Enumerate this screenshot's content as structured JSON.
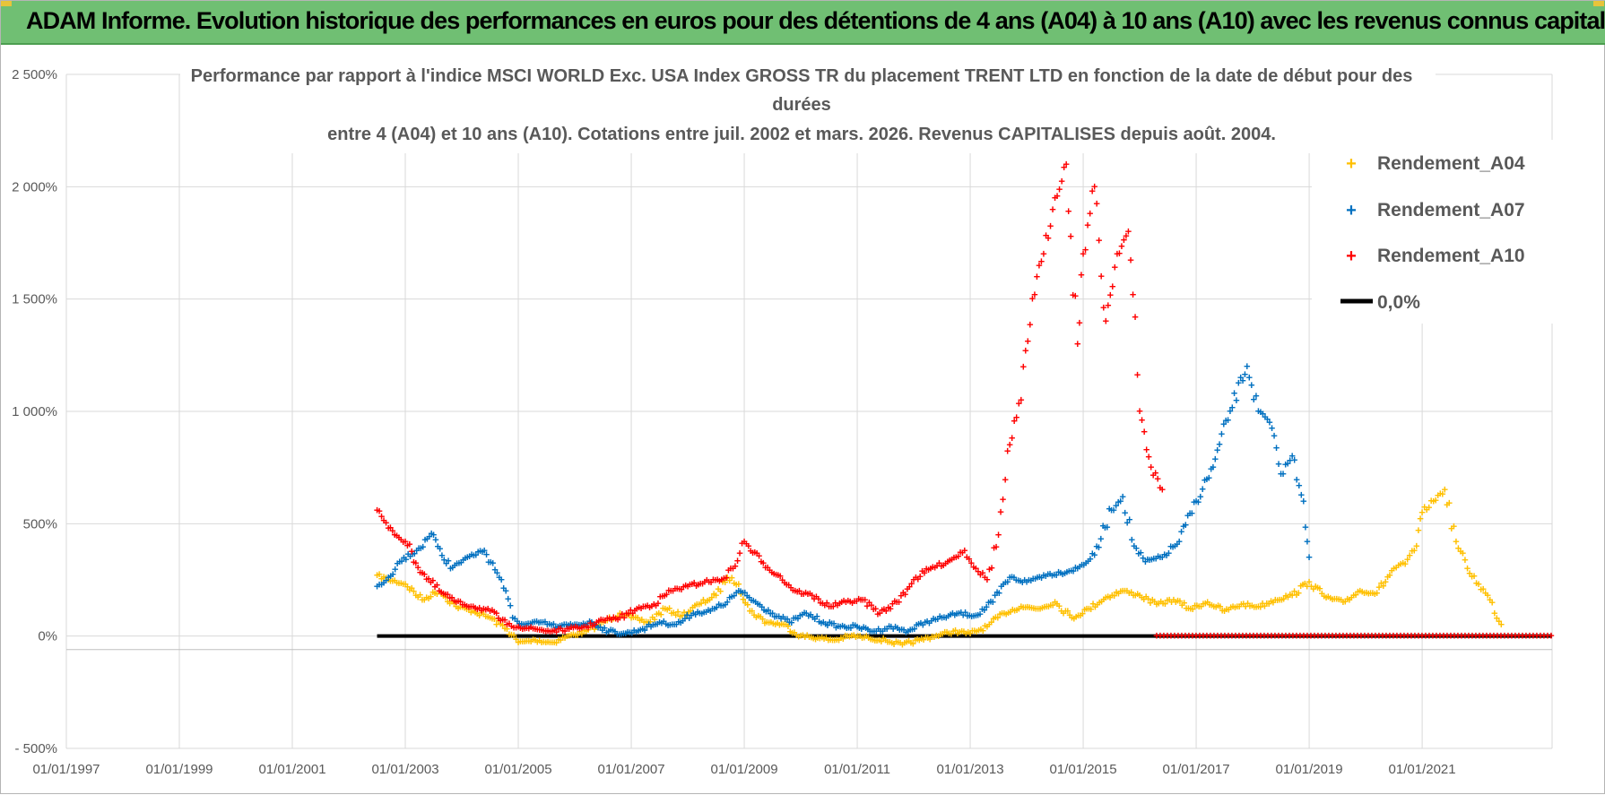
{
  "banner": {
    "title": "ADAM Informe. Evolution historique des performances en euros pour des détentions de 4 ans (A04) à 10 ans (A10) avec les revenus connus capitalisés"
  },
  "colors": {
    "banner_bg": "#70bf73",
    "A04": "#ffc000",
    "A07": "#0070c0",
    "A10": "#ff0000",
    "zero": "#000000",
    "grid": "#d9d9d9",
    "text": "#595959"
  },
  "chart_data": {
    "type": "scatter",
    "title_lines": [
      "Performance par rapport à l'indice MSCI WORLD Exc. USA Index GROSS TR  du placement TRENT LTD en fonction de la date de début pour des",
      "durées",
      "entre 4 (A04) et 10 ans (A10).  Cotations entre juil. 2002 et mars. 2026.  Revenus CAPITALISES  depuis août. 2004."
    ],
    "y_ticks": [
      "- 500%",
      "0%",
      "500%",
      "1 000%",
      "1 500%",
      "2 000%",
      "2 500%"
    ],
    "y_tick_values": [
      -500,
      0,
      500,
      1000,
      1500,
      2000,
      2500
    ],
    "x_ticks": [
      "01/01/1997",
      "01/01/1999",
      "01/01/2001",
      "01/01/2003",
      "01/01/2005",
      "01/01/2007",
      "01/01/2009",
      "01/01/2011",
      "01/01/2013",
      "01/01/2015",
      "01/01/2017",
      "01/01/2019",
      "01/01/2021"
    ],
    "x_tick_values": [
      1997,
      1999,
      2001,
      2003,
      2005,
      2007,
      2009,
      2011,
      2013,
      2015,
      2017,
      2019,
      2021
    ],
    "xlim": [
      1997,
      2023.3
    ],
    "ylim": [
      -500,
      2500
    ],
    "ylabel_unit": "%",
    "legend": [
      {
        "name": "Rendement_A04",
        "key": "A04",
        "marker": "+"
      },
      {
        "name": "Rendement_A07",
        "key": "A07",
        "marker": "+"
      },
      {
        "name": "Rendement_A10",
        "key": "A10",
        "marker": "+"
      },
      {
        "name": "0,0%",
        "key": "zero",
        "marker": "line"
      }
    ],
    "series": [
      {
        "name": "Rendement_A04",
        "key": "A04",
        "x": [
          2002.5,
          2002.7,
          2003.0,
          2003.3,
          2003.6,
          2003.9,
          2004.2,
          2004.5,
          2004.8,
          2005.0,
          2005.3,
          2005.6,
          2005.9,
          2006.2,
          2006.5,
          2006.8,
          2007.0,
          2007.3,
          2007.6,
          2007.9,
          2008.2,
          2008.5,
          2008.7,
          2008.9,
          2009.1,
          2009.4,
          2009.7,
          2010.0,
          2010.3,
          2010.6,
          2010.9,
          2011.2,
          2011.5,
          2011.8,
          2012.1,
          2012.4,
          2012.7,
          2013.0,
          2013.3,
          2013.6,
          2013.9,
          2014.2,
          2014.5,
          2014.8,
          2015.1,
          2015.4,
          2015.7,
          2016.0,
          2016.3,
          2016.6,
          2016.9,
          2017.2,
          2017.5,
          2017.8,
          2018.1,
          2018.4,
          2018.7,
          2019.0,
          2019.3,
          2019.6,
          2019.9,
          2020.2,
          2020.5,
          2020.7,
          2020.9,
          2021.0,
          2021.2,
          2021.4,
          2021.6,
          2021.8,
          2022.0,
          2022.2,
          2022.4
        ],
        "y": [
          270,
          250,
          230,
          160,
          200,
          130,
          110,
          80,
          30,
          -30,
          -20,
          -30,
          0,
          20,
          60,
          100,
          80,
          60,
          120,
          90,
          140,
          180,
          260,
          230,
          110,
          60,
          50,
          0,
          -10,
          -20,
          0,
          -10,
          -20,
          -40,
          -20,
          0,
          20,
          10,
          40,
          100,
          130,
          120,
          150,
          80,
          120,
          170,
          200,
          180,
          140,
          160,
          120,
          150,
          110,
          140,
          130,
          160,
          180,
          240,
          170,
          150,
          200,
          190,
          300,
          320,
          400,
          550,
          600,
          650,
          420,
          300,
          230,
          160,
          50
        ]
      },
      {
        "name": "Rendement_A07",
        "key": "A07",
        "x": [
          2002.5,
          2002.7,
          2002.9,
          2003.2,
          2003.5,
          2003.8,
          2004.1,
          2004.4,
          2004.7,
          2004.9,
          2005.1,
          2005.4,
          2005.7,
          2006.0,
          2006.3,
          2006.6,
          2006.9,
          2007.2,
          2007.5,
          2007.8,
          2008.1,
          2008.4,
          2008.7,
          2008.9,
          2009.2,
          2009.5,
          2009.8,
          2010.1,
          2010.4,
          2010.7,
          2011.0,
          2011.3,
          2011.6,
          2011.9,
          2012.2,
          2012.5,
          2012.8,
          2013.1,
          2013.4,
          2013.7,
          2014.0,
          2014.3,
          2014.6,
          2014.9,
          2015.2,
          2015.5,
          2015.7,
          2015.9,
          2016.1,
          2016.4,
          2016.7,
          2017.0,
          2017.3,
          2017.6,
          2017.9,
          2018.1,
          2018.3,
          2018.5,
          2018.7,
          2018.9,
          2019.0
        ],
        "y": [
          220,
          260,
          330,
          380,
          450,
          300,
          350,
          380,
          250,
          80,
          50,
          60,
          40,
          50,
          60,
          20,
          10,
          30,
          60,
          50,
          100,
          110,
          150,
          200,
          150,
          100,
          60,
          100,
          60,
          40,
          40,
          20,
          40,
          20,
          60,
          80,
          100,
          90,
          150,
          260,
          240,
          270,
          280,
          300,
          360,
          560,
          620,
          400,
          330,
          350,
          420,
          600,
          750,
          1000,
          1200,
          1000,
          950,
          720,
          800,
          600,
          350
        ]
      },
      {
        "name": "Rendement_A10",
        "key": "A10",
        "x": [
          2002.5,
          2002.7,
          2003.0,
          2003.3,
          2003.6,
          2003.9,
          2004.2,
          2004.5,
          2004.8,
          2005.0,
          2005.3,
          2005.6,
          2005.9,
          2006.2,
          2006.5,
          2006.8,
          2007.1,
          2007.4,
          2007.7,
          2008.0,
          2008.3,
          2008.6,
          2008.8,
          2009.0,
          2009.3,
          2009.6,
          2009.9,
          2010.2,
          2010.5,
          2010.8,
          2011.1,
          2011.4,
          2011.7,
          2012.0,
          2012.3,
          2012.6,
          2012.9,
          2013.1,
          2013.3,
          2013.5,
          2013.7,
          2013.9,
          2014.1,
          2014.3,
          2014.5,
          2014.7,
          2014.9,
          2015.0,
          2015.2,
          2015.4,
          2015.6,
          2015.8,
          2016.0,
          2016.2,
          2016.4
        ],
        "y": [
          560,
          480,
          420,
          280,
          200,
          150,
          130,
          110,
          50,
          40,
          30,
          20,
          30,
          40,
          70,
          80,
          120,
          140,
          200,
          220,
          240,
          250,
          300,
          420,
          330,
          270,
          200,
          180,
          130,
          150,
          160,
          100,
          150,
          250,
          300,
          330,
          380,
          300,
          250,
          450,
          850,
          1050,
          1500,
          1700,
          1950,
          2100,
          1300,
          1700,
          2000,
          1400,
          1700,
          1800,
          1000,
          750,
          650
        ]
      },
      {
        "name": "0,0%",
        "key": "zero",
        "x": [
          2002.5,
          2023.3
        ],
        "y": [
          0,
          0
        ]
      }
    ],
    "a10_zero_segment": {
      "x": [
        2016.3,
        2023.3
      ],
      "y": 0
    }
  }
}
